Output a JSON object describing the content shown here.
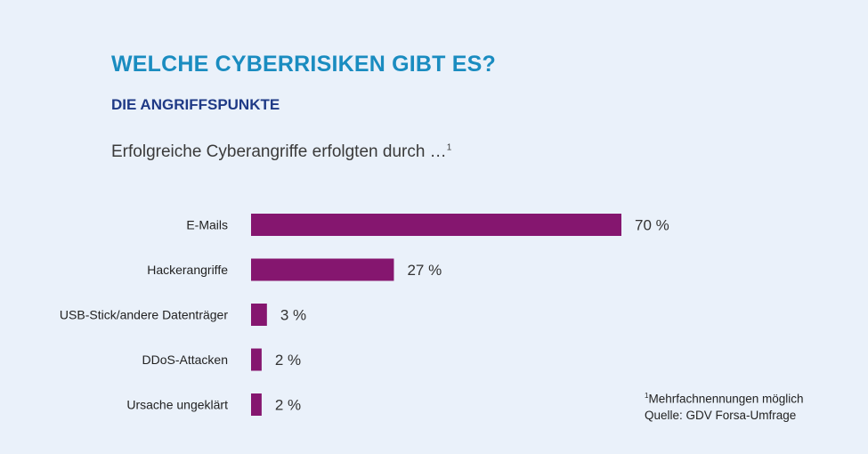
{
  "chart_data": {
    "type": "bar",
    "orientation": "horizontal",
    "title": "WELCHE CYBERRISIKEN GIBT ES?",
    "subtitle": "DIE ANGRIFFSPUNKTE",
    "intro": "Erfolgreiche Cyberangriffe erfolgten durch …",
    "intro_marker": "1",
    "categories": [
      "E-Mails",
      "Hackerangriffe",
      "USB-Stick/andere Datenträger",
      "DDoS-Attacken",
      "Ursache ungeklärt"
    ],
    "values": [
      70,
      27,
      3,
      2,
      2
    ],
    "value_labels": [
      "70 %",
      "27 %",
      "3 %",
      "2 %",
      "2 %"
    ],
    "unit": "%",
    "bar_color": "#85166f",
    "title_color": "#1a8cc0",
    "subtitle_color": "#1f3a86",
    "grid": false,
    "legend": "none",
    "footnote": {
      "marker": "1",
      "line1": "Mehrfachnennungen möglich",
      "line2": "Quelle: GDV Forsa-Umfrage"
    }
  }
}
